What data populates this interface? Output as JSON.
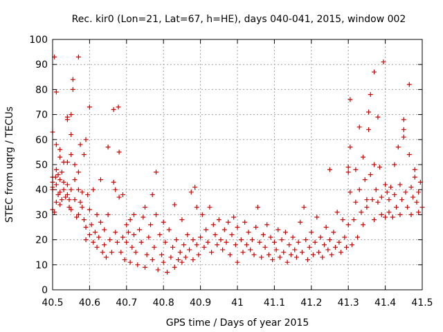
{
  "chart_data": {
    "type": "scatter",
    "title": "Rec. kir0 (Lon=21, Lat=67, h=HE), days 040-041, 2015, window 002",
    "xlabel": "GPS time / Days of year 2015",
    "ylabel": "STEC from uqrg / TECUs",
    "xlim": [
      40.5,
      41.5
    ],
    "ylim": [
      0,
      100
    ],
    "xticks": [
      40.5,
      40.6,
      40.7,
      40.8,
      40.9,
      41,
      41.1,
      41.2,
      41.3,
      41.4,
      41.5
    ],
    "xtick_labels": [
      "40.5",
      "40.6",
      "40.7",
      "40.8",
      "40.9",
      "41",
      "41.1",
      "41.2",
      "41.3",
      "41.4",
      "41.5"
    ],
    "yticks": [
      0,
      10,
      20,
      30,
      40,
      50,
      60,
      70,
      80,
      90,
      100
    ],
    "ytick_labels": [
      "0",
      "10",
      "20",
      "30",
      "40",
      "50",
      "60",
      "70",
      "80",
      "90",
      "100"
    ],
    "grid": true,
    "marker": "plus",
    "color": "#cc0000",
    "points": [
      [
        40.5,
        63.0
      ],
      [
        40.505,
        93.0
      ],
      [
        40.5,
        45.0
      ],
      [
        40.5,
        43.0
      ],
      [
        40.5,
        41.0
      ],
      [
        40.5,
        40.0
      ],
      [
        40.5,
        32.0
      ],
      [
        40.505,
        31.0
      ],
      [
        40.508,
        45.0
      ],
      [
        40.51,
        79.0
      ],
      [
        40.51,
        58.0
      ],
      [
        40.51,
        48.0
      ],
      [
        40.51,
        42.0
      ],
      [
        40.51,
        35.0
      ],
      [
        40.515,
        46.0
      ],
      [
        40.515,
        38.0
      ],
      [
        40.52,
        56.0
      ],
      [
        40.52,
        53.0
      ],
      [
        40.52,
        44.0
      ],
      [
        40.52,
        39.0
      ],
      [
        40.52,
        34.0
      ],
      [
        40.525,
        36.0
      ],
      [
        40.525,
        47.0
      ],
      [
        40.53,
        51.0
      ],
      [
        40.53,
        43.0
      ],
      [
        40.53,
        40.0
      ],
      [
        40.535,
        37.0
      ],
      [
        40.54,
        69.0
      ],
      [
        40.54,
        68.0
      ],
      [
        40.54,
        51.0
      ],
      [
        40.54,
        42.0
      ],
      [
        40.54,
        38.0
      ],
      [
        40.545,
        36.0
      ],
      [
        40.545,
        33.0
      ],
      [
        40.55,
        70.0
      ],
      [
        40.55,
        62.0
      ],
      [
        40.55,
        54.0
      ],
      [
        40.55,
        40.0
      ],
      [
        40.55,
        32.0
      ],
      [
        40.555,
        84.0
      ],
      [
        40.555,
        80.0
      ],
      [
        40.56,
        50.0
      ],
      [
        40.56,
        44.0
      ],
      [
        40.56,
        36.0
      ],
      [
        40.565,
        29.0
      ],
      [
        40.57,
        93.0
      ],
      [
        40.57,
        47.0
      ],
      [
        40.57,
        40.0
      ],
      [
        40.57,
        30.0
      ],
      [
        40.575,
        58.0
      ],
      [
        40.575,
        35.0
      ],
      [
        40.58,
        39.0
      ],
      [
        40.58,
        33.0
      ],
      [
        40.585,
        54.0
      ],
      [
        40.585,
        28.0
      ],
      [
        40.59,
        60.0
      ],
      [
        40.59,
        25.0
      ],
      [
        40.59,
        20.0
      ],
      [
        40.595,
        38.0
      ],
      [
        40.6,
        73.0
      ],
      [
        40.6,
        32.0
      ],
      [
        40.6,
        22.0
      ],
      [
        40.605,
        26.0
      ],
      [
        40.61,
        40.0
      ],
      [
        40.61,
        19.0
      ],
      [
        40.615,
        23.0
      ],
      [
        40.62,
        30.0
      ],
      [
        40.62,
        17.0
      ],
      [
        40.625,
        21.0
      ],
      [
        40.63,
        44.0
      ],
      [
        40.63,
        27.0
      ],
      [
        40.635,
        15.0
      ],
      [
        40.64,
        18.0
      ],
      [
        40.64,
        24.0
      ],
      [
        40.645,
        13.0
      ],
      [
        40.65,
        57.0
      ],
      [
        40.65,
        30.0
      ],
      [
        40.655,
        20.0
      ],
      [
        40.66,
        15.0
      ],
      [
        40.665,
        72.0
      ],
      [
        40.665,
        43.0
      ],
      [
        40.67,
        40.0
      ],
      [
        40.67,
        23.0
      ],
      [
        40.675,
        19.0
      ],
      [
        40.678,
        73.0
      ],
      [
        40.68,
        55.0
      ],
      [
        40.68,
        37.0
      ],
      [
        40.685,
        15.0
      ],
      [
        40.69,
        38.0
      ],
      [
        40.69,
        21.0
      ],
      [
        40.695,
        12.0
      ],
      [
        40.7,
        26.0
      ],
      [
        40.7,
        19.0
      ],
      [
        40.705,
        23.0
      ],
      [
        40.71,
        28.0
      ],
      [
        40.71,
        11.0
      ],
      [
        40.715,
        17.0
      ],
      [
        40.72,
        22.0
      ],
      [
        40.72,
        30.0
      ],
      [
        40.725,
        15.0
      ],
      [
        40.73,
        10.0
      ],
      [
        40.735,
        24.0
      ],
      [
        40.74,
        19.0
      ],
      [
        40.745,
        29.0
      ],
      [
        40.75,
        33.0
      ],
      [
        40.75,
        9.0
      ],
      [
        40.755,
        14.0
      ],
      [
        40.76,
        21.0
      ],
      [
        40.765,
        26.0
      ],
      [
        40.77,
        38.0
      ],
      [
        40.77,
        12.0
      ],
      [
        40.775,
        17.0
      ],
      [
        40.78,
        47.0
      ],
      [
        40.78,
        30.0
      ],
      [
        40.785,
        8.0
      ],
      [
        40.79,
        22.0
      ],
      [
        40.795,
        14.0
      ],
      [
        40.8,
        27.0
      ],
      [
        40.8,
        11.0
      ],
      [
        40.805,
        19.0
      ],
      [
        40.81,
        7.0
      ],
      [
        40.815,
        24.0
      ],
      [
        40.82,
        13.0
      ],
      [
        40.825,
        17.0
      ],
      [
        40.83,
        34.0
      ],
      [
        40.83,
        9.0
      ],
      [
        40.835,
        20.0
      ],
      [
        40.84,
        12.0
      ],
      [
        40.845,
        15.0
      ],
      [
        40.85,
        28.0
      ],
      [
        40.85,
        11.0
      ],
      [
        40.855,
        18.0
      ],
      [
        40.86,
        13.0
      ],
      [
        40.865,
        22.0
      ],
      [
        40.87,
        16.0
      ],
      [
        40.875,
        39.0
      ],
      [
        40.88,
        20.0
      ],
      [
        40.88,
        12.0
      ],
      [
        40.885,
        41.0
      ],
      [
        40.89,
        33.0
      ],
      [
        40.89,
        18.0
      ],
      [
        40.895,
        14.0
      ],
      [
        40.9,
        21.0
      ],
      [
        40.905,
        30.0
      ],
      [
        40.91,
        17.0
      ],
      [
        40.915,
        24.0
      ],
      [
        40.92,
        19.0
      ],
      [
        40.925,
        33.0
      ],
      [
        40.93,
        15.0
      ],
      [
        40.935,
        26.0
      ],
      [
        40.94,
        22.0
      ],
      [
        40.945,
        18.0
      ],
      [
        40.95,
        28.0
      ],
      [
        40.955,
        20.0
      ],
      [
        40.96,
        16.0
      ],
      [
        40.965,
        24.0
      ],
      [
        40.97,
        19.0
      ],
      [
        40.975,
        27.0
      ],
      [
        40.98,
        14.0
      ],
      [
        40.985,
        22.0
      ],
      [
        40.99,
        29.0
      ],
      [
        40.995,
        18.0
      ],
      [
        41.0,
        25.0
      ],
      [
        41.0,
        11.0
      ],
      [
        41.01,
        20.0
      ],
      [
        41.015,
        15.0
      ],
      [
        41.02,
        27.0
      ],
      [
        41.025,
        18.0
      ],
      [
        41.03,
        23.0
      ],
      [
        41.035,
        16.0
      ],
      [
        41.04,
        20.0
      ],
      [
        41.045,
        14.0
      ],
      [
        41.05,
        25.0
      ],
      [
        41.055,
        33.0
      ],
      [
        41.06,
        19.0
      ],
      [
        41.065,
        13.0
      ],
      [
        41.07,
        22.0
      ],
      [
        41.075,
        17.0
      ],
      [
        41.08,
        26.0
      ],
      [
        41.085,
        14.0
      ],
      [
        41.09,
        21.0
      ],
      [
        41.095,
        12.0
      ],
      [
        41.1,
        19.0
      ],
      [
        41.105,
        16.0
      ],
      [
        41.11,
        24.0
      ],
      [
        41.115,
        13.0
      ],
      [
        41.12,
        20.0
      ],
      [
        41.125,
        15.0
      ],
      [
        41.13,
        23.0
      ],
      [
        41.135,
        11.0
      ],
      [
        41.14,
        18.0
      ],
      [
        41.145,
        14.0
      ],
      [
        41.15,
        21.0
      ],
      [
        41.155,
        16.0
      ],
      [
        41.16,
        13.0
      ],
      [
        41.165,
        19.0
      ],
      [
        41.17,
        27.0
      ],
      [
        41.175,
        15.0
      ],
      [
        41.18,
        33.0
      ],
      [
        41.185,
        20.0
      ],
      [
        41.19,
        12.0
      ],
      [
        41.195,
        17.0
      ],
      [
        41.2,
        23.0
      ],
      [
        41.205,
        14.0
      ],
      [
        41.21,
        19.0
      ],
      [
        41.215,
        29.0
      ],
      [
        41.22,
        15.0
      ],
      [
        41.225,
        21.0
      ],
      [
        41.23,
        13.0
      ],
      [
        41.235,
        18.0
      ],
      [
        41.24,
        25.0
      ],
      [
        41.245,
        16.0
      ],
      [
        41.25,
        48.0
      ],
      [
        41.25,
        20.0
      ],
      [
        41.255,
        14.0
      ],
      [
        41.26,
        23.0
      ],
      [
        41.265,
        17.0
      ],
      [
        41.27,
        31.0
      ],
      [
        41.275,
        19.0
      ],
      [
        41.28,
        15.0
      ],
      [
        41.285,
        28.0
      ],
      [
        41.29,
        21.0
      ],
      [
        41.295,
        17.0
      ],
      [
        41.3,
        49.0
      ],
      [
        41.3,
        47.0
      ],
      [
        41.3,
        26.0
      ],
      [
        41.305,
        76.0
      ],
      [
        41.305,
        57.0
      ],
      [
        41.305,
        39.0
      ],
      [
        41.31,
        18.0
      ],
      [
        41.315,
        28.0
      ],
      [
        41.32,
        48.0
      ],
      [
        41.32,
        35.0
      ],
      [
        41.325,
        21.0
      ],
      [
        41.33,
        65.0
      ],
      [
        41.33,
        40.0
      ],
      [
        41.335,
        31.0
      ],
      [
        41.34,
        53.0
      ],
      [
        41.34,
        26.0
      ],
      [
        41.345,
        44.0
      ],
      [
        41.35,
        36.0
      ],
      [
        41.35,
        33.0
      ],
      [
        41.355,
        71.0
      ],
      [
        41.355,
        64.0
      ],
      [
        41.36,
        78.0
      ],
      [
        41.36,
        46.0
      ],
      [
        41.365,
        36.0
      ],
      [
        41.37,
        87.0
      ],
      [
        41.37,
        50.0
      ],
      [
        41.37,
        28.0
      ],
      [
        41.375,
        40.0
      ],
      [
        41.38,
        69.0
      ],
      [
        41.38,
        35.0
      ],
      [
        41.385,
        49.0
      ],
      [
        41.39,
        37.0
      ],
      [
        41.39,
        30.0
      ],
      [
        41.395,
        91.0
      ],
      [
        41.4,
        42.0
      ],
      [
        41.4,
        29.0
      ],
      [
        41.405,
        39.0
      ],
      [
        41.41,
        36.0
      ],
      [
        41.41,
        31.0
      ],
      [
        41.415,
        41.0
      ],
      [
        41.42,
        29.0
      ],
      [
        41.425,
        50.0
      ],
      [
        41.425,
        38.0
      ],
      [
        41.43,
        33.0
      ],
      [
        41.435,
        57.0
      ],
      [
        41.44,
        42.0
      ],
      [
        41.44,
        30.0
      ],
      [
        41.445,
        36.0
      ],
      [
        41.45,
        68.0
      ],
      [
        41.45,
        64.0
      ],
      [
        41.45,
        61.0
      ],
      [
        41.455,
        39.0
      ],
      [
        41.46,
        33.0
      ],
      [
        41.465,
        82.0
      ],
      [
        41.465,
        54.0
      ],
      [
        41.47,
        41.0
      ],
      [
        41.47,
        30.0
      ],
      [
        41.475,
        37.0
      ],
      [
        41.48,
        48.0
      ],
      [
        41.48,
        45.0
      ],
      [
        41.485,
        35.0
      ],
      [
        41.49,
        39.0
      ],
      [
        41.49,
        31.0
      ],
      [
        41.495,
        43.0
      ],
      [
        41.5,
        33.0
      ]
    ]
  }
}
